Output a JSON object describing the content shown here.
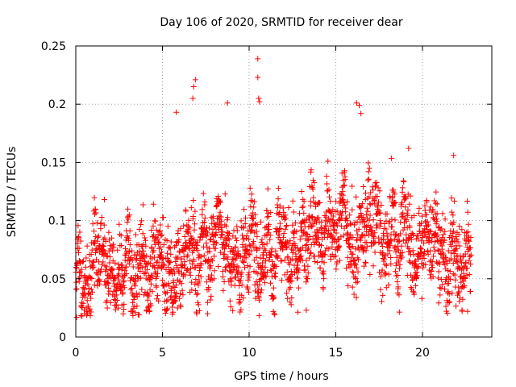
{
  "chart_data": {
    "type": "scatter",
    "title": "Day 106 of 2020, SRMTID for receiver dear",
    "xlabel": "GPS time / hours",
    "ylabel": "SRMTID / TECUs",
    "xlim": [
      0,
      24
    ],
    "ylim": [
      0,
      0.25
    ],
    "xticks": [
      0,
      5,
      10,
      15,
      20
    ],
    "xtick_labels": [
      "0",
      "5",
      "10",
      "15",
      "20"
    ],
    "yticks": [
      0,
      0.05,
      0.1,
      0.15,
      0.2,
      0.25
    ],
    "ytick_labels": [
      "0",
      "0.05",
      "0.1",
      "0.15",
      "0.2",
      "0.25"
    ],
    "grid": true,
    "marker": "+",
    "color": "#ff0000",
    "x_range_data": [
      0,
      22.8
    ],
    "series": [
      {
        "name": "SRMTID",
        "approx_trend": [
          {
            "x": 0,
            "y": 0.045
          },
          {
            "x": 1,
            "y": 0.06
          },
          {
            "x": 2,
            "y": 0.07
          },
          {
            "x": 3,
            "y": 0.055
          },
          {
            "x": 4,
            "y": 0.06
          },
          {
            "x": 5,
            "y": 0.055
          },
          {
            "x": 6,
            "y": 0.075
          },
          {
            "x": 7,
            "y": 0.07
          },
          {
            "x": 8,
            "y": 0.085
          },
          {
            "x": 9,
            "y": 0.08
          },
          {
            "x": 10,
            "y": 0.07
          },
          {
            "x": 11,
            "y": 0.07
          },
          {
            "x": 12,
            "y": 0.08
          },
          {
            "x": 13,
            "y": 0.085
          },
          {
            "x": 14,
            "y": 0.09
          },
          {
            "x": 15,
            "y": 0.095
          },
          {
            "x": 16,
            "y": 0.09
          },
          {
            "x": 17,
            "y": 0.09
          },
          {
            "x": 18,
            "y": 0.085
          },
          {
            "x": 19,
            "y": 0.09
          },
          {
            "x": 20,
            "y": 0.075
          },
          {
            "x": 21,
            "y": 0.07
          },
          {
            "x": 22,
            "y": 0.065
          },
          {
            "x": 22.8,
            "y": 0.055
          }
        ],
        "notable_points": [
          {
            "x": 6.9,
            "y": 0.221
          },
          {
            "x": 6.8,
            "y": 0.215
          },
          {
            "x": 6.75,
            "y": 0.205
          },
          {
            "x": 5.8,
            "y": 0.193
          },
          {
            "x": 8.75,
            "y": 0.201
          },
          {
            "x": 10.5,
            "y": 0.239
          },
          {
            "x": 10.5,
            "y": 0.223
          },
          {
            "x": 10.55,
            "y": 0.205
          },
          {
            "x": 10.6,
            "y": 0.202
          },
          {
            "x": 16.2,
            "y": 0.201
          },
          {
            "x": 16.35,
            "y": 0.199
          },
          {
            "x": 16.45,
            "y": 0.192
          },
          {
            "x": 19.2,
            "y": 0.162
          },
          {
            "x": 21.8,
            "y": 0.156
          },
          {
            "x": 0.05,
            "y": 0.017
          },
          {
            "x": 22.6,
            "y": 0.022
          },
          {
            "x": 13.3,
            "y": 0.023
          },
          {
            "x": 7.6,
            "y": 0.02
          }
        ]
      }
    ]
  }
}
